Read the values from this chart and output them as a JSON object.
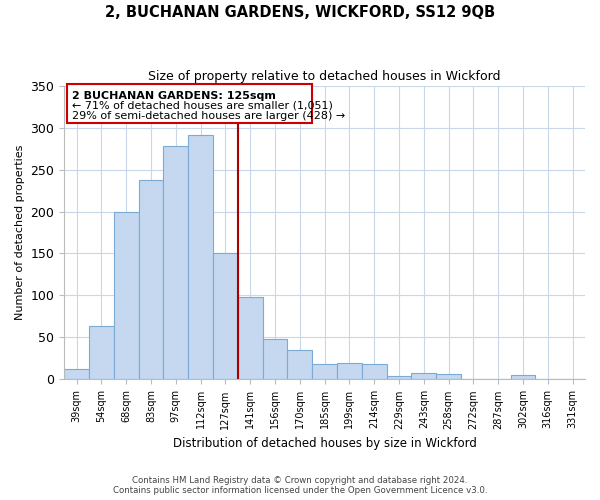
{
  "title": "2, BUCHANAN GARDENS, WICKFORD, SS12 9QB",
  "subtitle": "Size of property relative to detached houses in Wickford",
  "xlabel": "Distribution of detached houses by size in Wickford",
  "ylabel": "Number of detached properties",
  "bar_labels": [
    "39sqm",
    "54sqm",
    "68sqm",
    "83sqm",
    "97sqm",
    "112sqm",
    "127sqm",
    "141sqm",
    "156sqm",
    "170sqm",
    "185sqm",
    "199sqm",
    "214sqm",
    "229sqm",
    "243sqm",
    "258sqm",
    "272sqm",
    "287sqm",
    "302sqm",
    "316sqm",
    "331sqm"
  ],
  "bar_heights": [
    13,
    64,
    200,
    237,
    278,
    291,
    150,
    98,
    48,
    35,
    18,
    19,
    18,
    4,
    8,
    7,
    1,
    0,
    5,
    0,
    0
  ],
  "bar_color": "#c5d8f0",
  "bar_edge_color": "#7baad4",
  "vline_x_index": 6,
  "vline_color": "#aa0000",
  "ylim": [
    0,
    350
  ],
  "yticks": [
    0,
    50,
    100,
    150,
    200,
    250,
    300,
    350
  ],
  "annotation_title": "2 BUCHANAN GARDENS: 125sqm",
  "annotation_line1": "← 71% of detached houses are smaller (1,051)",
  "annotation_line2": "29% of semi-detached houses are larger (428) →",
  "annotation_box_color": "#ffffff",
  "annotation_box_edge": "#cc0000",
  "footer_line1": "Contains HM Land Registry data © Crown copyright and database right 2024.",
  "footer_line2": "Contains public sector information licensed under the Open Government Licence v3.0.",
  "background_color": "#ffffff",
  "grid_color": "#c8d8e8"
}
